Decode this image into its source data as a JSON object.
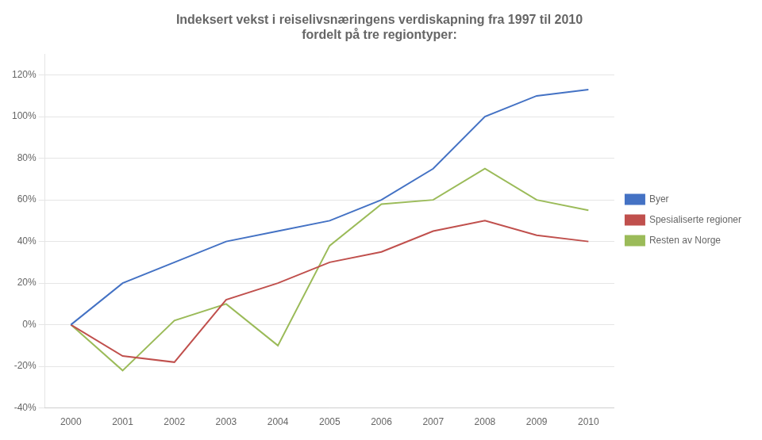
{
  "chart_data": {
    "type": "line",
    "title": "Indeksert vekst i reiselivsnæringens verdiskapning fra 1997 til 2010\nfordelt på tre regiontyper:",
    "x": [
      2000,
      2001,
      2002,
      2003,
      2004,
      2005,
      2006,
      2007,
      2008,
      2009,
      2010
    ],
    "series": [
      {
        "name": "Byer",
        "color": "#4472C4",
        "values": [
          0,
          20,
          30,
          40,
          45,
          50,
          60,
          75,
          100,
          110,
          113
        ]
      },
      {
        "name": "Spesialiserte regioner",
        "color": "#C0504D",
        "values": [
          0,
          -15,
          -18,
          12,
          20,
          30,
          35,
          45,
          50,
          43,
          40
        ]
      },
      {
        "name": "Resten av Norge",
        "color": "#9BBB59",
        "values": [
          0,
          -22,
          2,
          10,
          -10,
          38,
          58,
          60,
          75,
          60,
          55
        ]
      }
    ],
    "xlim": [
      1999.5,
      2010.5
    ],
    "xticks": [
      2000,
      2001,
      2002,
      2003,
      2004,
      2005,
      2006,
      2007,
      2008,
      2009,
      2010
    ],
    "ylim": [
      -40,
      130
    ],
    "yticks": [
      {
        "value": -40,
        "label": "-40%"
      },
      {
        "value": -20,
        "label": "-20%"
      },
      {
        "value": 0,
        "label": "0%"
      },
      {
        "value": 20,
        "label": "20%"
      },
      {
        "value": 40,
        "label": "40%"
      },
      {
        "value": 60,
        "label": "60%"
      },
      {
        "value": 80,
        "label": "80%"
      },
      {
        "value": 100,
        "label": "100%"
      },
      {
        "value": 120,
        "label": "120%"
      }
    ],
    "grid": true,
    "legend": "right"
  }
}
